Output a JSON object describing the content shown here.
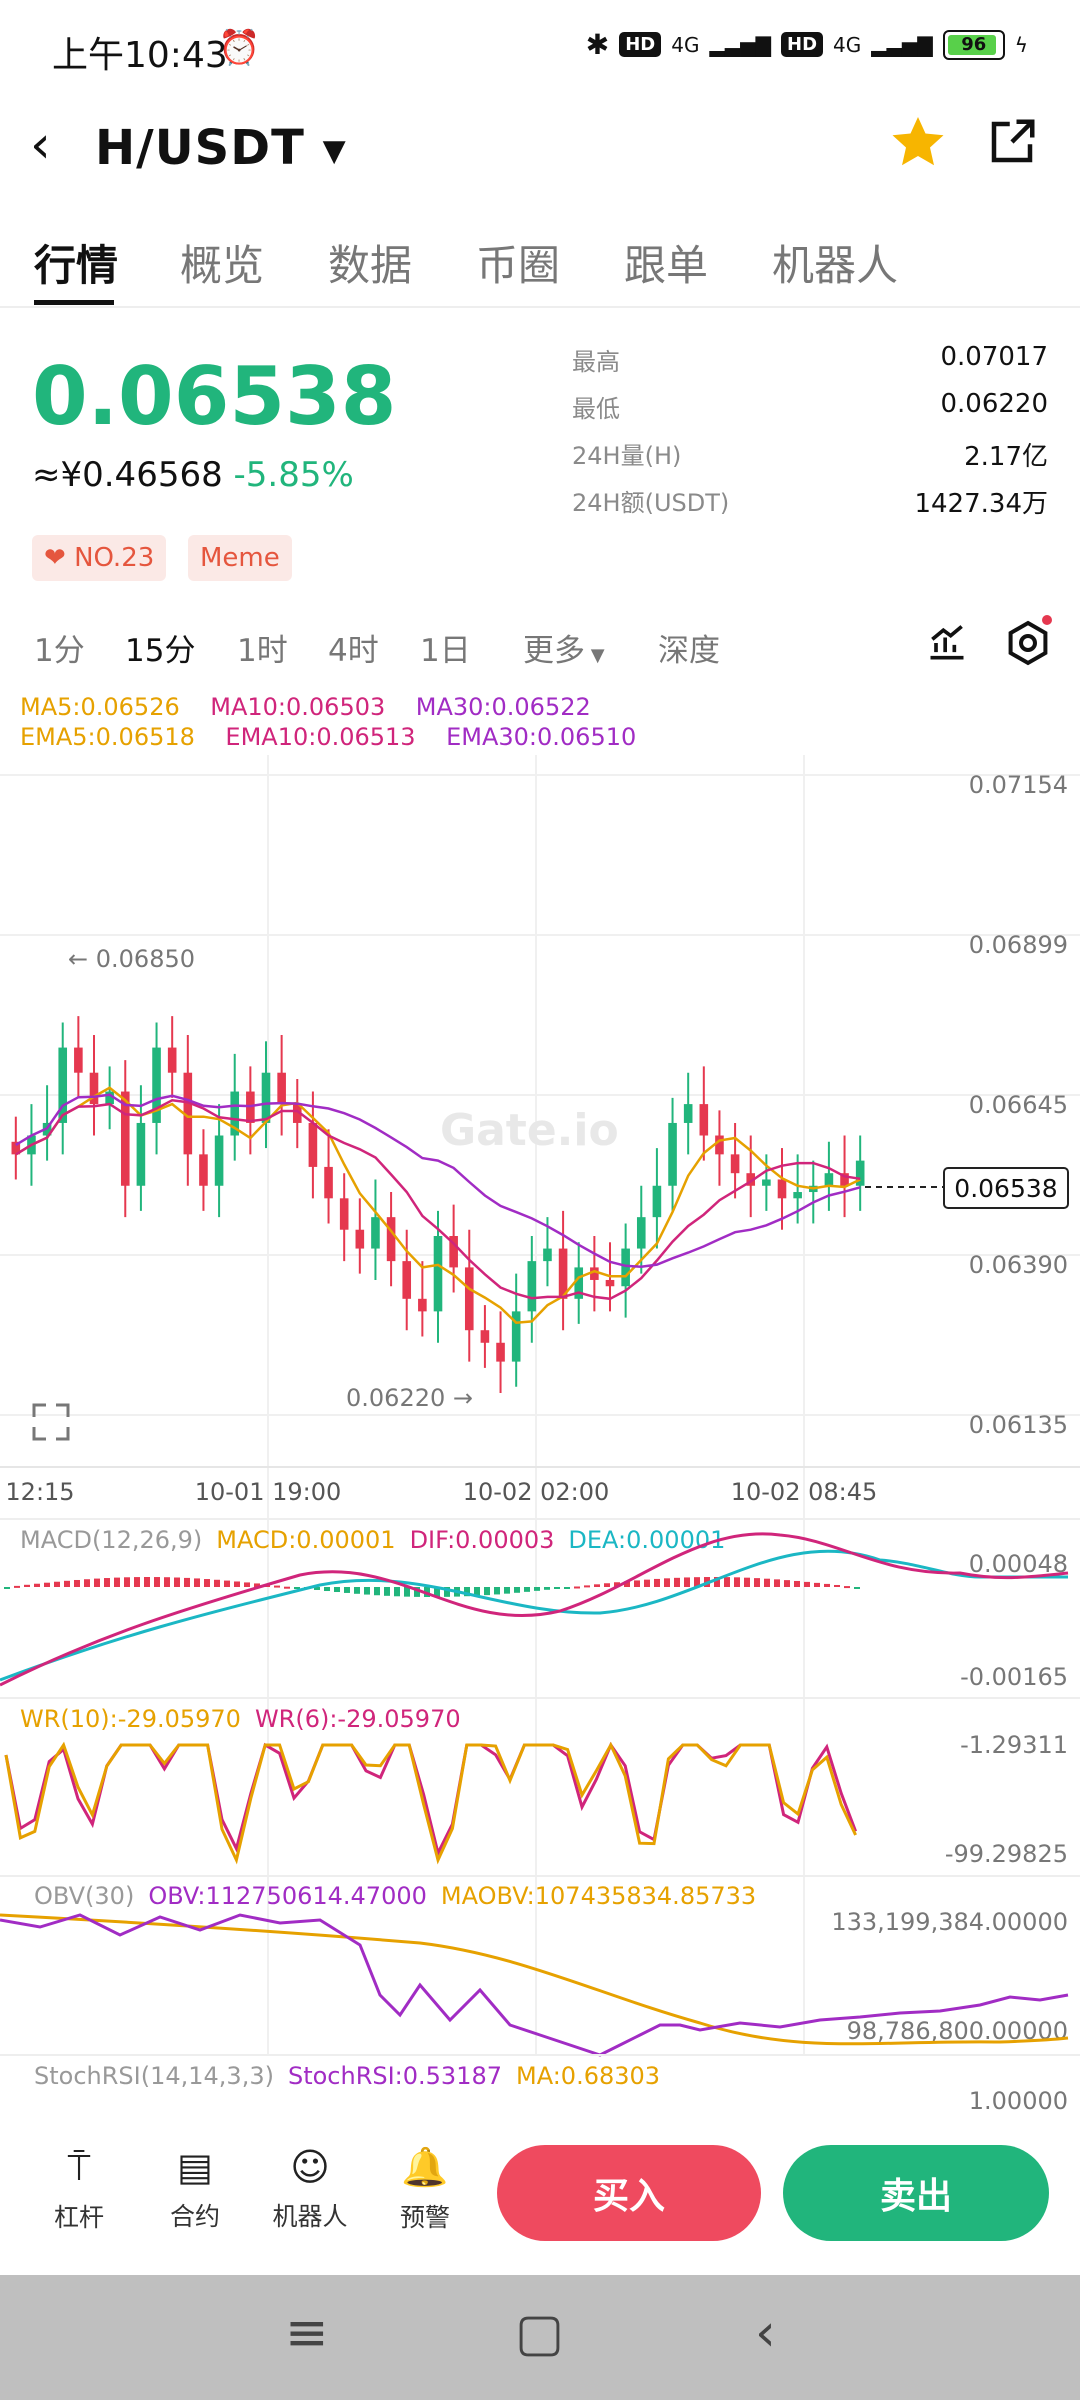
{
  "status_bar": {
    "time": "上午10:43",
    "alarm_icon": "alarm-clock-icon",
    "network_1": "4G",
    "network_2": "4G",
    "hd": "HD",
    "battery": "96"
  },
  "header": {
    "pair": "H/USDT",
    "dropdown_icon": "caret-down-icon",
    "favorite_icon": "star-icon",
    "share_icon": "share-icon",
    "star_color": "#f7b500"
  },
  "tabs": [
    "行情",
    "概览",
    "数据",
    "币圈",
    "跟单",
    "机器人"
  ],
  "ticker": {
    "price": "0.06538",
    "fiat": "≈¥0.46568",
    "change": "-5.85%",
    "stats": [
      {
        "label": "最高",
        "value": "0.07017"
      },
      {
        "label": "最低",
        "value": "0.06220"
      },
      {
        "label": "24H量(H)",
        "value": "2.17亿"
      },
      {
        "label": "24H额(USDT)",
        "value": "1427.34万"
      }
    ],
    "tags": [
      "NO.23",
      "Meme"
    ],
    "up_color": "#21b57c",
    "down_color": "#e5384f"
  },
  "timeframes": [
    "1分",
    "15分",
    "1时",
    "4时",
    "1日",
    "更多",
    "深度"
  ],
  "ma_legend": {
    "ma5": "MA5:0.06526",
    "ma10": "MA10:0.06503",
    "ma30": "MA30:0.06522",
    "ema5": "EMA5:0.06518",
    "ema10": "EMA10:0.06513",
    "ema30": "EMA30:0.06510"
  },
  "chart_data": {
    "type": "candlestick",
    "y_ticks": [
      "0.07154",
      "0.06899",
      "0.06645",
      "0.06390",
      "0.06135"
    ],
    "ylim": [
      0.06135,
      0.07154
    ],
    "x_ticks": [
      "12:15",
      "10-01 19:00",
      "10-02 02:00",
      "10-02 08:45"
    ],
    "high_marker": "0.06850",
    "low_marker": "0.06220",
    "last_price_label": "0.06538",
    "watermark": "Gate.io",
    "closes": [
      0.0655,
      0.0658,
      0.066,
      0.0672,
      0.0668,
      0.0663,
      0.0665,
      0.065,
      0.066,
      0.0672,
      0.0668,
      0.0655,
      0.065,
      0.0658,
      0.0665,
      0.066,
      0.0668,
      0.0663,
      0.066,
      0.0653,
      0.0648,
      0.0643,
      0.064,
      0.0645,
      0.0638,
      0.0632,
      0.063,
      0.0642,
      0.0637,
      0.0627,
      0.0625,
      0.0622,
      0.063,
      0.0638,
      0.064,
      0.0632,
      0.0637,
      0.0635,
      0.0634,
      0.064,
      0.0645,
      0.065,
      0.066,
      0.0663,
      0.0658,
      0.0655,
      0.0652,
      0.065,
      0.0651,
      0.0648,
      0.0649,
      0.065,
      0.0652,
      0.065,
      0.0654
    ]
  },
  "macd": {
    "label": "MACD(12,26,9)",
    "macd": "MACD:0.00001",
    "dif": "DIF:0.00003",
    "dea": "DEA:0.00001",
    "top": "0.00048",
    "bottom": "-0.00165"
  },
  "wr": {
    "wr10": "WR(10):-29.05970",
    "wr6": "WR(6):-29.05970",
    "top": "-1.29311",
    "bottom": "-99.29825"
  },
  "obv": {
    "label": "OBV(30)",
    "obv": "OBV:112750614.47000",
    "maobv": "MAOBV:107435834.85733",
    "top": "133,199,384.00000",
    "bottom": "98,786,800.00000"
  },
  "stochrsi": {
    "label": "StochRSI(14,14,3,3)",
    "value": "StochRSI:0.53187",
    "ma": "MA:0.68303",
    "top": "1.00000"
  },
  "bottom_bar": {
    "items": [
      {
        "label": "杠杆",
        "icon": "leverage-icon"
      },
      {
        "label": "合约",
        "icon": "contract-icon"
      },
      {
        "label": "机器人",
        "icon": "robot-icon"
      },
      {
        "label": "预警",
        "icon": "alert-bell-icon"
      }
    ],
    "buy": "买入",
    "sell": "卖出",
    "buy_color": "#ef4a5f",
    "sell_color": "#21b57c"
  }
}
